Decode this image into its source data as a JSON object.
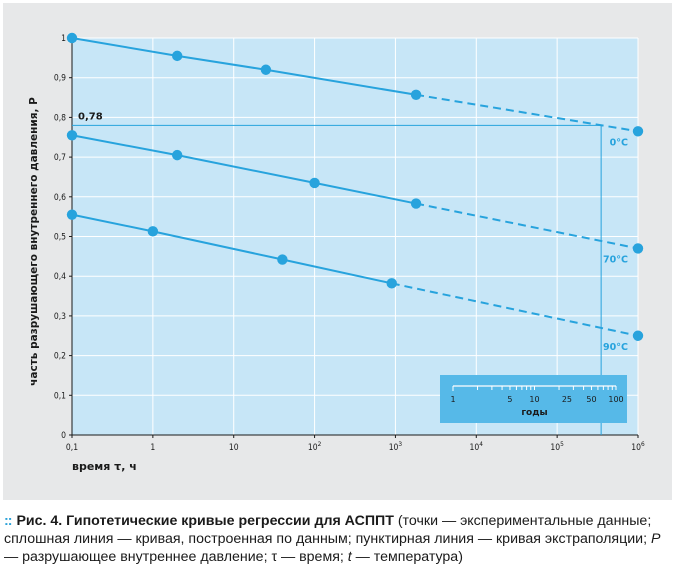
{
  "chart_data": {
    "type": "line",
    "xscale": "log",
    "xlim": [
      0.1,
      1000000
    ],
    "ylim": [
      0,
      1
    ],
    "grid": true,
    "ylabel": "часть разрушающего внутреннего давления, P",
    "xlabel": "время τ, ч",
    "x_ticks": [
      {
        "value": 0.1,
        "base": "0,1",
        "exp": ""
      },
      {
        "value": 1,
        "base": "1",
        "exp": ""
      },
      {
        "value": 10,
        "base": "10",
        "exp": ""
      },
      {
        "value": 100,
        "base": "10",
        "exp": "2"
      },
      {
        "value": 1000,
        "base": "10",
        "exp": "3"
      },
      {
        "value": 10000,
        "base": "10",
        "exp": "4"
      },
      {
        "value": 100000,
        "base": "10",
        "exp": "5"
      },
      {
        "value": 1000000,
        "base": "10",
        "exp": "6"
      }
    ],
    "y_ticks": [
      {
        "value": 0,
        "label": "0"
      },
      {
        "value": 0.1,
        "label": "0,1"
      },
      {
        "value": 0.2,
        "label": "0,2"
      },
      {
        "value": 0.3,
        "label": "0,3"
      },
      {
        "value": 0.4,
        "label": "0,4"
      },
      {
        "value": 0.5,
        "label": "0,5"
      },
      {
        "value": 0.6,
        "label": "0,6"
      },
      {
        "value": 0.7,
        "label": "0,7"
      },
      {
        "value": 0.8,
        "label": "0,8"
      },
      {
        "value": 0.9,
        "label": "0,9"
      },
      {
        "value": 1,
        "label": "1"
      }
    ],
    "series": [
      {
        "name": "0°C",
        "color": "#27a3dd",
        "points": [
          [
            0.1,
            1.0
          ],
          [
            2,
            0.955
          ],
          [
            25,
            0.92
          ],
          [
            1800,
            0.857
          ],
          [
            1000000,
            0.765
          ]
        ],
        "solid_until": 1800
      },
      {
        "name": "70°C",
        "color": "#27a3dd",
        "points": [
          [
            0.1,
            0.755
          ],
          [
            2,
            0.705
          ],
          [
            100,
            0.635
          ],
          [
            1800,
            0.583
          ],
          [
            1000000,
            0.47
          ]
        ],
        "solid_until": 1800
      },
      {
        "name": "90°C",
        "color": "#27a3dd",
        "points": [
          [
            0.1,
            0.555
          ],
          [
            1,
            0.513
          ],
          [
            40,
            0.442
          ],
          [
            900,
            0.382
          ],
          [
            1000000,
            0.25
          ]
        ],
        "solid_until": 900
      }
    ],
    "reference": {
      "label": "0,78",
      "y": 0.78,
      "x": 350000
    },
    "years_scale": {
      "label": "годы",
      "ticks": [
        {
          "value": 1,
          "label": "1"
        },
        {
          "value": 5,
          "label": "5"
        },
        {
          "value": 10,
          "label": "10"
        },
        {
          "value": 25,
          "label": "25"
        },
        {
          "value": 50,
          "label": "50"
        },
        {
          "value": 100,
          "label": "100"
        }
      ]
    }
  },
  "caption": {
    "dots": "::",
    "lead": "Рис. 4. Гипотетические кривые регрессии для АСППТ",
    "body": " (точки — экспериментальные данные; сплошная линия — кривая, построенная по данным; пунктирная линия — кривая экстраполяции; ",
    "p_symbol": "P",
    "p_text": " — разрушающее внутреннее давление; ",
    "tau_symbol": "τ",
    "tau_text": " — время; ",
    "t_symbol": "t",
    "t_text": " — температура)"
  },
  "colors": {
    "plot_bg": "#c7e6f7",
    "grid": "#ffffff",
    "series": "#27a3dd",
    "panel": "#e7e8e9",
    "accent": "#2aa1d8"
  }
}
